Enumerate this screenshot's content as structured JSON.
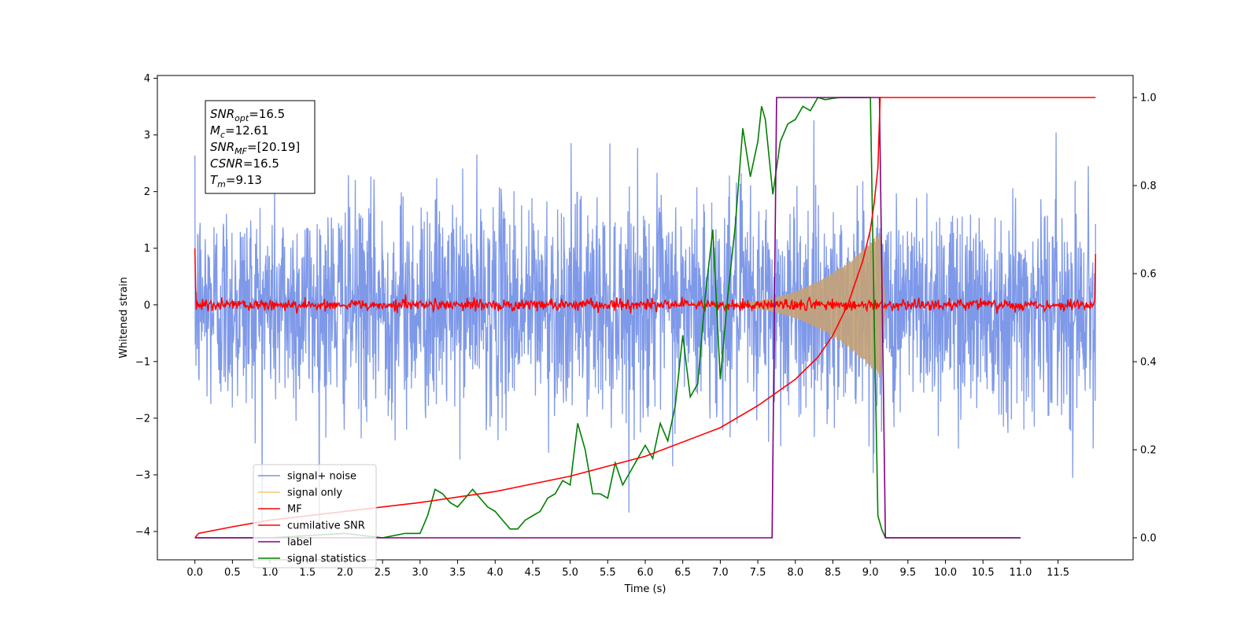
{
  "chart_data": {
    "type": "line",
    "title": "",
    "xlabel": "Time (s)",
    "ylabel": "Whitened strain",
    "ylabel_right": "",
    "xlim": [
      -0.5,
      12.5
    ],
    "ylim": [
      -4.5,
      4.05
    ],
    "ylim_right": [
      -0.05,
      1.05
    ],
    "x_ticks": [
      "0.0",
      "0.5",
      "1.0",
      "1.5",
      "2.0",
      "2.5",
      "3.0",
      "3.5",
      "4.0",
      "4.5",
      "5.0",
      "5.5",
      "6.0",
      "6.5",
      "7.0",
      "7.5",
      "8.0",
      "8.5",
      "9.0",
      "9.5",
      "10.0",
      "10.5",
      "11.0",
      "11.5"
    ],
    "y_ticks": [
      "4",
      "3",
      "2",
      "1",
      "0",
      "−1",
      "−2",
      "−3",
      "−4"
    ],
    "y_right_ticks": [
      "1.0",
      "0.8",
      "0.6",
      "0.4",
      "0.2",
      "0.0"
    ],
    "annotation": {
      "lines": [
        {
          "sym": "SNR",
          "sub": "opt",
          "val": "=16.5"
        },
        {
          "sym": "M",
          "sub": "c",
          "val": "=12.61"
        },
        {
          "sym": "SNR",
          "sub": "MF",
          "val": "=[20.19]"
        },
        {
          "sym": "CSNR",
          "sub": "",
          "val": "=16.5"
        },
        {
          "sym": "T",
          "sub": "m",
          "val": "=9.13"
        }
      ]
    },
    "legend": {
      "placement": "lower-left",
      "entries": [
        {
          "label": "signal+ noise",
          "color": "#7893e8"
        },
        {
          "label": "signal only",
          "color": "#f5c96a"
        },
        {
          "label": "MF",
          "color": "#ff0000"
        },
        {
          "label": "cumilative SNR",
          "color": "#ff0000"
        },
        {
          "label": "label",
          "color": "#800080"
        },
        {
          "label": "signal statistics",
          "color": "#008000"
        }
      ]
    },
    "series": [
      {
        "name": "signal+ noise",
        "axis": "left",
        "color": "#7893e8",
        "style": "noise",
        "x_range": [
          0.0,
          12.0
        ],
        "amplitude_std": 0.95
      },
      {
        "name": "signal only",
        "axis": "left",
        "color": "#c4a277",
        "style": "chirp",
        "x_range": [
          6.5,
          9.2
        ],
        "peak_x": 9.13,
        "peak_amplitude": 1.3
      },
      {
        "name": "MF",
        "axis": "left",
        "color": "#ff0000",
        "style": "noise",
        "x_range": [
          0.0,
          12.0
        ],
        "amplitude_std": 0.05,
        "edge_values": [
          1.0,
          0.9
        ]
      },
      {
        "name": "cumilative SNR",
        "axis": "right",
        "color": "#ff0000",
        "x": [
          0.0,
          0.05,
          0.5,
          1.0,
          2.0,
          3.0,
          4.0,
          5.0,
          6.0,
          7.0,
          7.5,
          8.0,
          8.3,
          8.5,
          8.7,
          8.9,
          9.0,
          9.05,
          9.1,
          9.13
        ],
        "y": [
          0.0,
          0.01,
          0.025,
          0.04,
          0.06,
          0.08,
          0.105,
          0.14,
          0.185,
          0.25,
          0.3,
          0.36,
          0.41,
          0.46,
          0.53,
          0.63,
          0.7,
          0.76,
          0.84,
          1.0
        ]
      },
      {
        "name": "label",
        "axis": "right",
        "color": "#800080",
        "x": [
          0.0,
          7.69,
          7.75,
          9.12,
          9.2,
          11.0
        ],
        "y": [
          0,
          0,
          1,
          1,
          0,
          0
        ]
      },
      {
        "name": "signal statistics",
        "axis": "right",
        "color": "#008000",
        "x": [
          0.0,
          1.0,
          2.0,
          2.5,
          2.8,
          3.0,
          3.1,
          3.2,
          3.3,
          3.4,
          3.5,
          3.6,
          3.7,
          3.8,
          3.9,
          4.0,
          4.1,
          4.2,
          4.3,
          4.4,
          4.5,
          4.6,
          4.7,
          4.8,
          4.9,
          5.0,
          5.1,
          5.2,
          5.3,
          5.4,
          5.5,
          5.6,
          5.7,
          5.8,
          5.9,
          6.0,
          6.1,
          6.2,
          6.3,
          6.4,
          6.5,
          6.6,
          6.7,
          6.8,
          6.9,
          7.0,
          7.1,
          7.2,
          7.3,
          7.4,
          7.5,
          7.55,
          7.6,
          7.7,
          7.8,
          7.9,
          8.0,
          8.1,
          8.2,
          8.3,
          8.4,
          8.5,
          8.6,
          8.8,
          9.0,
          9.05,
          9.1,
          9.15,
          9.2,
          9.3,
          11.0
        ],
        "y": [
          0.0,
          0.0,
          0.01,
          0.0,
          0.01,
          0.01,
          0.05,
          0.11,
          0.1,
          0.08,
          0.07,
          0.09,
          0.11,
          0.09,
          0.07,
          0.06,
          0.04,
          0.02,
          0.02,
          0.04,
          0.05,
          0.06,
          0.09,
          0.1,
          0.13,
          0.12,
          0.26,
          0.2,
          0.1,
          0.1,
          0.09,
          0.17,
          0.12,
          0.15,
          0.18,
          0.21,
          0.18,
          0.26,
          0.22,
          0.3,
          0.46,
          0.32,
          0.35,
          0.55,
          0.7,
          0.36,
          0.55,
          0.71,
          0.93,
          0.82,
          0.9,
          0.98,
          0.95,
          0.78,
          0.9,
          0.94,
          0.95,
          0.98,
          0.97,
          1.0,
          0.995,
          0.998,
          1.0,
          1.0,
          1.0,
          0.5,
          0.05,
          0.02,
          0.0,
          0.0,
          0.0
        ]
      }
    ]
  }
}
